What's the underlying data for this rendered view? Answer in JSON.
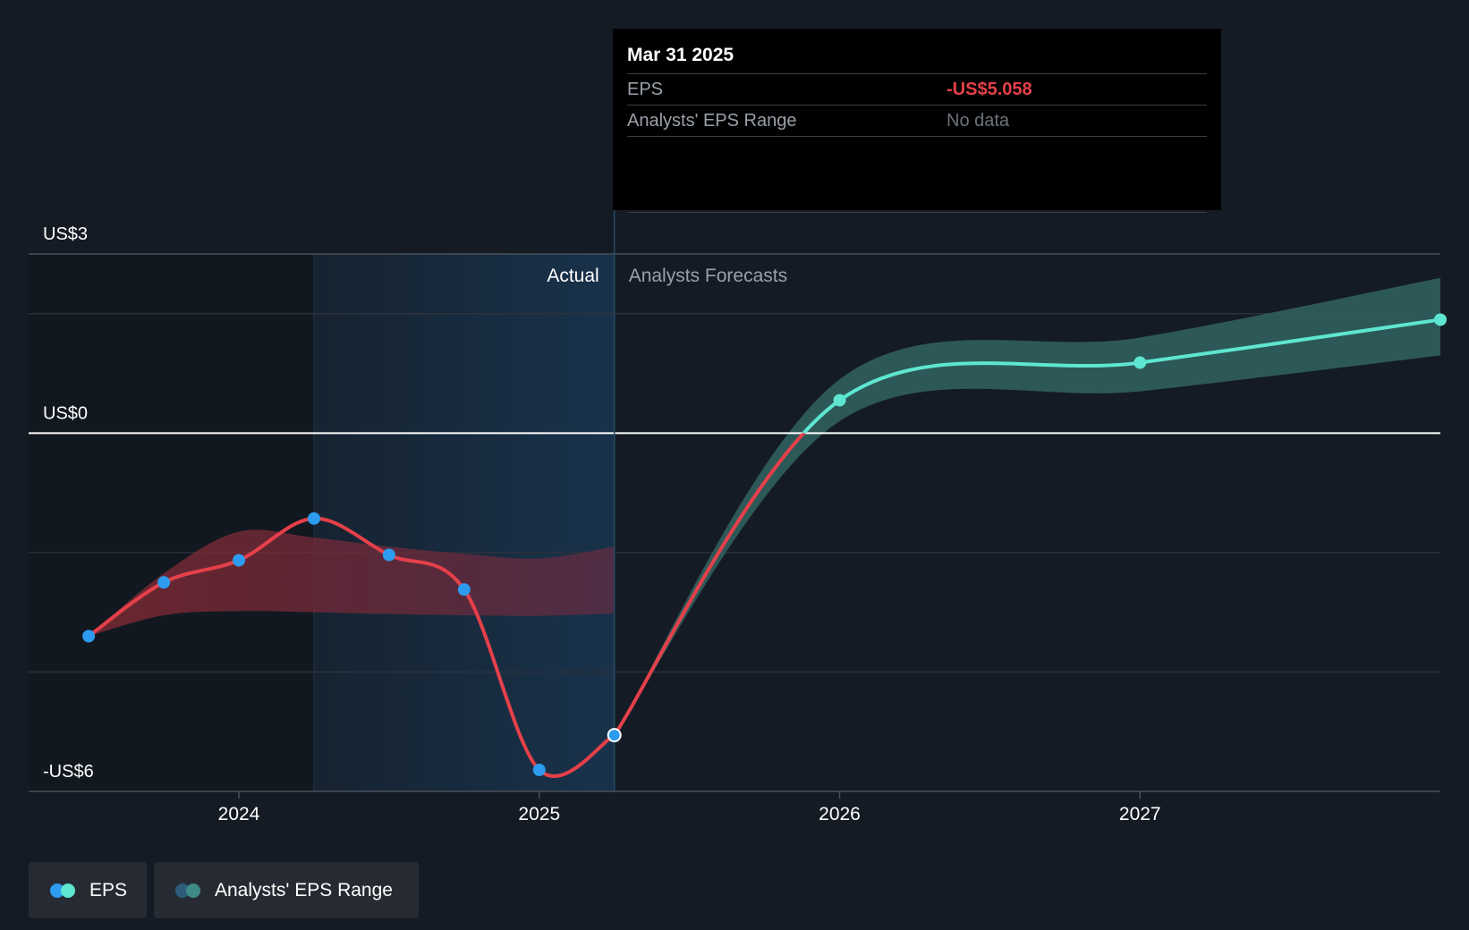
{
  "chart_data": {
    "type": "line",
    "y_ticks": [
      {
        "value": 3,
        "label": "US$3"
      },
      {
        "value": 0,
        "label": "US$0"
      },
      {
        "value": -6,
        "label": "-US$6"
      }
    ],
    "ylim": [
      -6,
      3
    ],
    "gridlines": [
      2,
      -2,
      -4
    ],
    "x_ticks": [
      {
        "value": 2024.0,
        "label": "2024"
      },
      {
        "value": 2025.0,
        "label": "2025"
      },
      {
        "value": 2026.0,
        "label": "2026"
      },
      {
        "value": 2027.0,
        "label": "2027"
      }
    ],
    "xlim": [
      2023.3,
      2028.0
    ],
    "actual_label": "Actual",
    "forecast_label": "Analysts Forecasts",
    "divider_x": 2025.25,
    "shade_start_x": 2024.25,
    "series": [
      {
        "name": "EPS",
        "kind": "actual",
        "points": [
          {
            "x": 2023.5,
            "y": -3.4
          },
          {
            "x": 2023.75,
            "y": -2.5
          },
          {
            "x": 2024.0,
            "y": -2.13
          },
          {
            "x": 2024.25,
            "y": -1.43
          },
          {
            "x": 2024.5,
            "y": -2.04
          },
          {
            "x": 2024.75,
            "y": -2.62
          },
          {
            "x": 2025.0,
            "y": -5.64
          },
          {
            "x": 2025.25,
            "y": -5.058
          }
        ],
        "range_upper": [
          -3.4,
          -2.35,
          -1.65,
          -1.75,
          -1.9,
          -2.02,
          -2.1,
          -1.9
        ],
        "range_lower": [
          -3.4,
          -3.05,
          -2.98,
          -3.0,
          -3.03,
          -3.05,
          -3.06,
          -3.02
        ]
      },
      {
        "name": "EPS",
        "kind": "forecast",
        "points": [
          {
            "x": 2025.25,
            "y": -5.058
          },
          {
            "x": 2026.0,
            "y": 0.55
          },
          {
            "x": 2027.0,
            "y": 1.18
          },
          {
            "x": 2028.0,
            "y": 1.9
          }
        ],
        "range_upper": [
          -5.058,
          0.9,
          1.6,
          2.6
        ],
        "range_lower": [
          -5.058,
          0.2,
          0.7,
          1.3
        ]
      }
    ],
    "colors": {
      "actual_line": "#e5404a",
      "forecast_line": "#5ee6d0",
      "actual_point": "#2d9cf0",
      "forecast_point": "#5ee6d0",
      "forecast_band": "#2e5c5c",
      "actual_band": "#7a2a33",
      "zero_line": "#ffffff",
      "grid": "#2c323b"
    },
    "tooltip": {
      "date": "Mar 31 2025",
      "rows": [
        {
          "label": "EPS",
          "value": "-US$5.058"
        },
        {
          "label": "Analysts' EPS Range",
          "value": "No data"
        }
      ]
    },
    "legend": [
      {
        "label": "EPS",
        "colors": [
          "#2d9cf0",
          "#5ee6d0"
        ]
      },
      {
        "label": "Analysts' EPS Range",
        "colors": [
          "#2b5c7a",
          "#3f8a86"
        ]
      }
    ]
  }
}
